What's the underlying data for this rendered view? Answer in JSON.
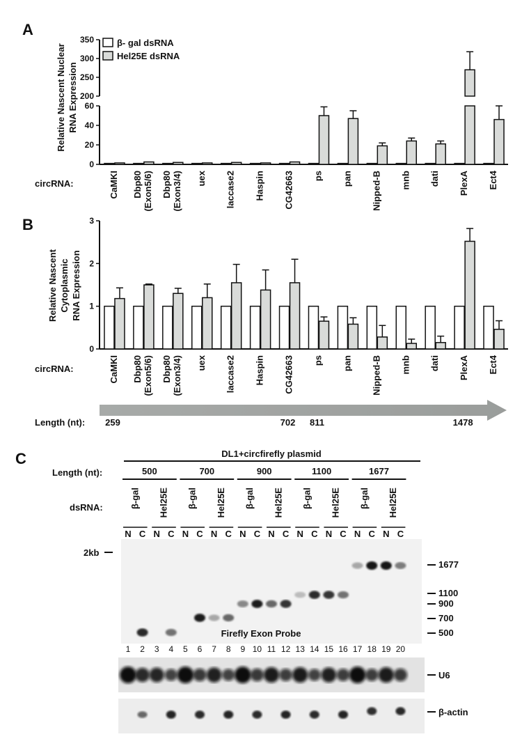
{
  "panel_labels": {
    "a": "A",
    "b": "B",
    "c": "C"
  },
  "legend": {
    "bgal": "β- gal dsRNA",
    "hel": "Hel25E dsRNA"
  },
  "circ_label": "circRNA:",
  "chart_data": [
    {
      "type": "bar",
      "id": "A",
      "ylabel_lines": [
        "Relative Nascent Nuclear",
        "RNA Expression"
      ],
      "categories": [
        "CaMKI",
        "Dbp80\n(Exon5/6)",
        "Dbp80\n(Exon3/4)",
        "uex",
        "laccase2",
        "Haspin",
        "CG42663",
        "ps",
        "pan",
        "Nipped-B",
        "mnb",
        "dati",
        "PlexA",
        "Ect4"
      ],
      "ylim_lower": [
        0,
        60
      ],
      "ylim_upper": [
        200,
        350
      ],
      "yticks_lower": [
        0,
        20,
        40,
        60
      ],
      "yticks_upper": [
        200,
        250,
        300,
        350
      ],
      "series": [
        {
          "name": "β- gal dsRNA",
          "values": [
            1,
            1,
            1,
            1,
            1,
            1,
            1,
            1,
            1,
            1,
            1,
            1,
            1,
            1
          ],
          "errors": [
            0,
            0,
            0,
            0,
            0,
            0,
            0,
            0,
            0,
            0,
            0,
            0,
            0,
            0
          ]
        },
        {
          "name": "Hel25E dsRNA",
          "values": [
            1.5,
            2.5,
            2,
            1.5,
            2,
            1.5,
            2.5,
            50,
            47,
            19,
            24,
            21,
            270,
            46
          ],
          "errors": [
            0,
            0,
            0,
            0,
            0,
            0,
            0,
            9,
            8,
            3,
            3,
            3,
            48,
            14
          ]
        }
      ]
    },
    {
      "type": "bar",
      "id": "B",
      "ylabel_lines": [
        "Relative Nascent",
        "Cytoplasmic",
        "RNA Expression"
      ],
      "categories": [
        "CaMKI",
        "Dbp80\n(Exon5/6)",
        "Dbp80\n(Exon3/4)",
        "uex",
        "laccase2",
        "Haspin",
        "CG42663",
        "ps",
        "pan",
        "Nipped-B",
        "mnb",
        "dati",
        "PlexA",
        "Ect4"
      ],
      "ylim": [
        0,
        3
      ],
      "yticks": [
        0,
        1,
        2,
        3
      ],
      "series": [
        {
          "name": "β- gal dsRNA",
          "values": [
            1,
            1,
            1,
            1,
            1,
            1,
            1,
            1,
            1,
            1,
            1,
            1,
            1,
            1
          ],
          "errors": [
            0,
            0,
            0,
            0,
            0,
            0,
            0,
            0,
            0,
            0,
            0,
            0,
            0,
            0
          ]
        },
        {
          "name": "Hel25E dsRNA",
          "values": [
            1.18,
            1.5,
            1.3,
            1.2,
            1.55,
            1.38,
            1.55,
            0.65,
            0.58,
            0.28,
            0.13,
            0.15,
            2.52,
            0.46
          ],
          "errors": [
            0.25,
            0.02,
            0.12,
            0.32,
            0.43,
            0.47,
            0.55,
            0.1,
            0.15,
            0.27,
            0.1,
            0.15,
            0.3,
            0.2
          ]
        }
      ]
    }
  ],
  "length_axis": {
    "label": "Length (nt):",
    "markers": [
      {
        "text": "259",
        "at_category": 0
      },
      {
        "text": "702",
        "at_category": 6
      },
      {
        "text": "811",
        "at_category": 7
      },
      {
        "text": "1478",
        "at_category": 12
      }
    ]
  },
  "gel": {
    "header": "DL1+circfirefly plasmid",
    "length_label": "Length (nt):",
    "lengths": [
      "500",
      "700",
      "900",
      "1100",
      "1677"
    ],
    "dsrna_label": "dsRNA:",
    "dsrna": [
      "β-gal",
      "Hel25E"
    ],
    "fractions": [
      "N",
      "C"
    ],
    "size_marker": "2kb",
    "probe_label": "Firefly Exon Probe",
    "lanes": [
      "1",
      "2",
      "3",
      "4",
      "5",
      "6",
      "7",
      "8",
      "9",
      "10",
      "11",
      "12",
      "13",
      "14",
      "15",
      "16",
      "17",
      "18",
      "19",
      "20"
    ],
    "right_markers": [
      "1677",
      "1100",
      "900",
      "700",
      "500"
    ],
    "blot_labels": {
      "u6": "U6",
      "actin": "β-actin"
    },
    "main_band_intensity": [
      0,
      0.9,
      0,
      0.55,
      0,
      0.95,
      0.3,
      0.6,
      0.45,
      0.95,
      0.6,
      0.85,
      0.2,
      0.9,
      0.85,
      0.55,
      0.3,
      1,
      1,
      0.5
    ]
  }
}
